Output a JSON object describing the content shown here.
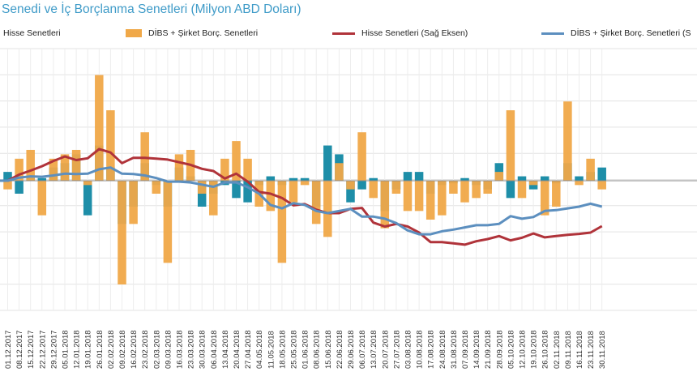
{
  "chart_data": {
    "type": "bar+line",
    "title": "Senedi ve İç Borçlanma Senetleri (Milyon ABD Doları)",
    "legend": [
      {
        "name": "Hisse Senetleri",
        "kind": "bar",
        "color": "#1e8ea8"
      },
      {
        "name": "DİBS + Şirket Borç. Senetleri",
        "kind": "bar",
        "color": "#f0a848"
      },
      {
        "name": "Hisse Senetleri (Sağ Eksen)",
        "kind": "line",
        "color": "#b0333a"
      },
      {
        "name": "DİBS + Şirket Borç. Senetleri (S",
        "kind": "line",
        "color": "#5c8fbf"
      }
    ],
    "categories": [
      "01.12.2017",
      "08.12.2017",
      "15.12.2017",
      "22.12.2017",
      "29.12.2017",
      "05.01.2018",
      "12.01.2018",
      "19.01.2018",
      "26.01.2018",
      "02.02.2018",
      "09.02.2018",
      "16.02.2018",
      "23.02.2018",
      "02.03.2018",
      "09.03.2018",
      "16.03.2018",
      "23.03.2018",
      "30.03.2018",
      "06.04.2018",
      "13.04.2018",
      "20.04.2018",
      "27.04.2018",
      "04.05.2018",
      "11.05.2018",
      "18.05.2018",
      "25.05.2018",
      "01.06.2018",
      "08.06.2018",
      "15.06.2018",
      "22.06.2018",
      "29.06.2018",
      "06.07.2018",
      "13.07.2018",
      "20.07.2018",
      "27.07.2018",
      "03.08.2018",
      "10.08.2018",
      "17.08.2018",
      "24.08.2018",
      "31.08.2018",
      "07.09.2018",
      "14.09.2018",
      "21.09.2018",
      "28.09.2018",
      "05.10.2018",
      "12.10.2018",
      "19.10.2018",
      "26.10.2018",
      "02.11.2018",
      "09.11.2018",
      "16.11.2018",
      "23.11.2018",
      "30.11.2018"
    ],
    "series": [
      {
        "name": "Hisse Senetleri",
        "type": "bar",
        "values": [
          10,
          -15,
          5,
          3,
          15,
          20,
          30,
          -40,
          40,
          15,
          -50,
          -30,
          20,
          -5,
          -30,
          15,
          5,
          -30,
          -15,
          -5,
          -20,
          -25,
          -5,
          5,
          -5,
          3,
          3,
          -30,
          40,
          30,
          -25,
          -10,
          3,
          -35,
          -10,
          10,
          10,
          -15,
          -5,
          -3,
          3,
          -5,
          -10,
          20,
          -20,
          5,
          -10,
          5,
          -3,
          20,
          5,
          10,
          15
        ]
      },
      {
        "name": "DİBS + Şirket Borç. Senetleri",
        "type": "bar",
        "values": [
          -10,
          25,
          35,
          -40,
          25,
          30,
          35,
          -5,
          120,
          80,
          -120,
          -50,
          55,
          -15,
          -95,
          30,
          35,
          -15,
          -40,
          25,
          45,
          25,
          -30,
          -35,
          -95,
          -25,
          -5,
          -50,
          -65,
          20,
          -10,
          55,
          -20,
          -55,
          -15,
          -35,
          -35,
          -45,
          -40,
          -15,
          -25,
          -20,
          -15,
          10,
          80,
          -20,
          -5,
          -40,
          -30,
          90,
          -5,
          25,
          -10
        ]
      },
      {
        "name": "Hisse Senetleri (Sağ Eksen)",
        "type": "line",
        "values": [
          0,
          14,
          23,
          33,
          45,
          55,
          47,
          51,
          72,
          64,
          40,
          52,
          52,
          50,
          48,
          42,
          36,
          27,
          22,
          5,
          16,
          -2,
          -26,
          -30,
          -40,
          -57,
          -54,
          -67,
          -75,
          -75,
          -65,
          -63,
          -97,
          -106,
          -100,
          -106,
          -120,
          -142,
          -142,
          -145,
          -148,
          -140,
          -135,
          -128,
          -138,
          -132,
          -122,
          -131,
          -128,
          -125,
          -123,
          -120,
          -105
        ]
      },
      {
        "name": "DİBS + Şirket Borç. Senetleri (S",
        "type": "line",
        "values": [
          0,
          7,
          10,
          9,
          12,
          16,
          15,
          16,
          26,
          30,
          16,
          15,
          12,
          6,
          -2,
          -2,
          -4,
          -9,
          -14,
          -4,
          -4,
          -15,
          -30,
          -56,
          -64,
          -52,
          -56,
          -70,
          -75,
          -70,
          -65,
          -83,
          -83,
          -88,
          -98,
          -115,
          -124,
          -124,
          -117,
          -113,
          -108,
          -103,
          -103,
          -100,
          -82,
          -88,
          -84,
          -70,
          -68,
          -64,
          -60,
          -53,
          -60
        ]
      }
    ],
    "ylim_left": [
      -150,
      150
    ],
    "ylim_right": [
      -300,
      300
    ],
    "grid": true,
    "legend_position": "top"
  }
}
